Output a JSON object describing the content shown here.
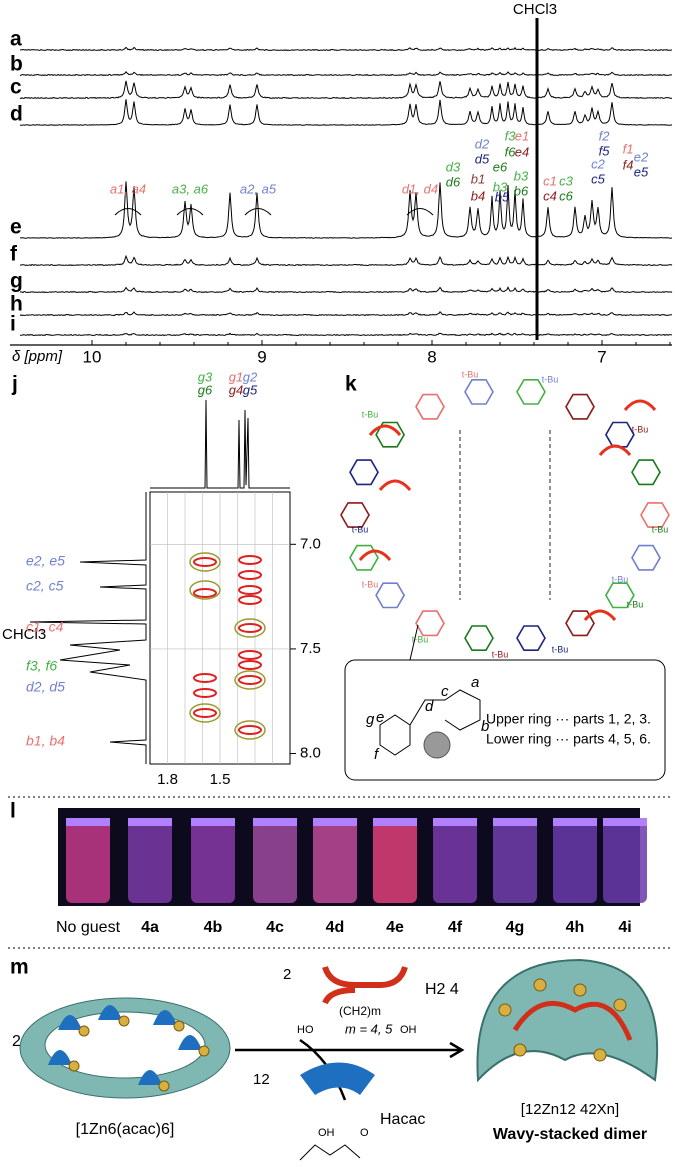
{
  "nmr": {
    "trace_labels": [
      "a",
      "b",
      "c",
      "d",
      "e",
      "f",
      "g",
      "h",
      "i"
    ],
    "solvent": "CHCl3",
    "axis_label": "δ [ppm]",
    "ticks": [
      "10",
      "9",
      "8",
      "7"
    ],
    "peak_labels": [
      "a1, a4",
      "a3, a6",
      "a2, a5",
      "d1, d4",
      "d3",
      "d6",
      "b1",
      "b4",
      "b3",
      "b5",
      "d2",
      "d5",
      "f3",
      "f6",
      "e6",
      "e1",
      "e4",
      "b3",
      "b6",
      "c1",
      "c3",
      "c4",
      "c6",
      "f2",
      "f5",
      "c2",
      "c5",
      "f1",
      "f4",
      "e2",
      "e5"
    ]
  },
  "j": {
    "label": "j",
    "x_ticks": [
      "1.8",
      "1.5"
    ],
    "y_ticks": [
      "7.0",
      "7.5",
      "8.0"
    ],
    "top_labels": [
      "g3",
      "g6",
      "g1",
      "g4",
      "g2",
      "g5"
    ],
    "left_labels": [
      "e2, e5",
      "c2, c5",
      "CHCl3",
      "c1, c4",
      "f3, f6",
      "d2, d5",
      "b1, b4"
    ]
  },
  "k": {
    "label": "k",
    "tbu": [
      "t-Bu",
      "t-Bu",
      "t-Bu",
      "t-Bu",
      "t-Bu",
      "t-Bu",
      "t-Bu",
      "t-Bu",
      "t-Bu",
      "t-Bu",
      "t-Bu",
      "t-Bu"
    ],
    "atoms": [
      "a",
      "b",
      "c",
      "d",
      "e",
      "f",
      "g"
    ],
    "legend": [
      "Upper ring ··· parts 1, 2, 3.",
      "Lower ring ··· parts 4, 5, 6."
    ]
  },
  "l": {
    "label": "l",
    "tubes": [
      "No guest",
      "4a",
      "4b",
      "4c",
      "4d",
      "4e",
      "4f",
      "4g",
      "4h",
      "4i"
    ]
  },
  "m": {
    "label": "m",
    "coef_ring": "2",
    "coef_acid": "2",
    "acid": "H2 4",
    "acid_chain": "(CH2)m",
    "ho": "HO",
    "oh": "OH",
    "m_value": "m = 4, 5",
    "coef_acac": "12",
    "acac_oh": "OH",
    "acac_o": "O",
    "byproduct": "Hacac",
    "reactant": "[1Zn6(acac)6]",
    "product": "[12Zn12 42Xn]",
    "product_name": "Wavy-stacked dimer"
  }
}
